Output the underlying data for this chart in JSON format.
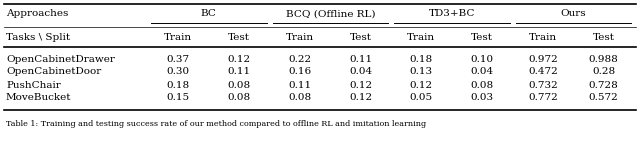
{
  "approaches_header": "Approaches",
  "tasks_split_header": "Tasks \\ Split",
  "method_groups": [
    {
      "name": "BC"
    },
    {
      "name": "BCQ (Offline RL)"
    },
    {
      "name": "TD3+BC"
    },
    {
      "name": "Ours"
    }
  ],
  "col_headers": [
    "Train",
    "Test",
    "Train",
    "Test",
    "Train",
    "Test",
    "Train",
    "Test"
  ],
  "rows": [
    {
      "task": "OpenCabinetDrawer",
      "values": [
        "0.37",
        "0.12",
        "0.22",
        "0.11",
        "0.18",
        "0.10",
        "0.972",
        "0.988"
      ]
    },
    {
      "task": "OpenCabinetDoor",
      "values": [
        "0.30",
        "0.11",
        "0.16",
        "0.04",
        "0.13",
        "0.04",
        "0.472",
        "0.28"
      ]
    },
    {
      "task": "PushChair",
      "values": [
        "0.18",
        "0.08",
        "0.11",
        "0.12",
        "0.12",
        "0.08",
        "0.732",
        "0.728"
      ]
    },
    {
      "task": "MoveBucket",
      "values": [
        "0.15",
        "0.08",
        "0.08",
        "0.12",
        "0.05",
        "0.03",
        "0.772",
        "0.572"
      ]
    }
  ],
  "caption": "Table 1: Training and testing success rate of our method compared to offline RL and imitation learning",
  "bg_color": "#ffffff",
  "text_color": "#000000",
  "font_size": 7.5,
  "caption_font_size": 5.8
}
